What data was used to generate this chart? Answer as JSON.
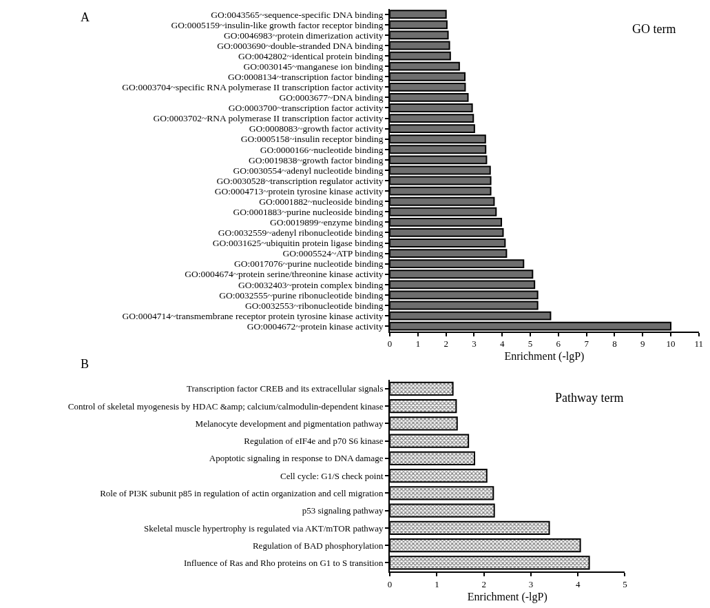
{
  "chart_data": [
    {
      "type": "bar",
      "orientation": "horizontal",
      "title": "A",
      "xlabel": "Enrichment (-lgP)",
      "annotations": [
        "GO term"
      ],
      "color": "#6e6e6e",
      "categories": [
        "GO:0043565~sequence-specific DNA binding",
        "GO:0005159~insulin-like growth factor receptor binding",
        "GO:0046983~protein dimerization activity",
        "GO:0003690~double-stranded DNA binding",
        "GO:0042802~identical protein binding",
        "GO:0030145~manganese ion binding",
        "GO:0008134~transcription factor binding",
        "GO:0003704~specific RNA polymerase II transcription factor activity",
        "GO:0003677~DNA binding",
        "GO:0003700~transcription factor activity",
        "GO:0003702~RNA polymerase II transcription factor activity",
        "GO:0008083~growth factor activity",
        "GO:0005158~insulin receptor binding",
        "GO:0000166~nucleotide binding",
        "GO:0019838~growth factor binding",
        "GO:0030554~adenyl nucleotide binding",
        "GO:0030528~transcription regulator activity",
        "GO:0004713~protein tyrosine kinase activity",
        "GO:0001882~nucleoside binding",
        "GO:0001883~purine nucleoside binding",
        "GO:0019899~enzyme binding",
        "GO:0032559~adenyl ribonucleotide binding",
        "GO:0031625~ubiquitin protein ligase binding",
        "GO:0005524~ATP binding",
        "GO:0017076~purine nucleotide binding",
        "GO:0004674~protein serine/threonine kinase activity",
        "GO:0032403~protein complex binding",
        "GO:0032555~purine ribonucleotide binding",
        "GO:0032553~ribonucleotide binding",
        "GO:0004714~transmembrane receptor protein tyrosine kinase activity",
        "GO:0004672~protein kinase activity"
      ],
      "values": [
        2.0,
        2.03,
        2.07,
        2.12,
        2.15,
        2.47,
        2.67,
        2.68,
        2.78,
        2.93,
        2.97,
        3.01,
        3.4,
        3.41,
        3.44,
        3.57,
        3.59,
        3.59,
        3.71,
        3.78,
        3.97,
        4.03,
        4.1,
        4.15,
        4.76,
        5.08,
        5.15,
        5.26,
        5.26,
        5.72,
        10.0
      ],
      "xlim": [
        0,
        11
      ],
      "xticks": [
        0,
        1,
        2,
        3,
        4,
        5,
        6,
        7,
        8,
        9,
        10,
        11
      ]
    },
    {
      "type": "bar",
      "orientation": "horizontal",
      "title": "B",
      "xlabel": "Enrichment (-lgP)",
      "annotations": [
        "Pathway term"
      ],
      "color": "#000000",
      "categories": [
        "Transcription factor CREB and its extracellular signals",
        "Control of skeletal myogenesis by HDAC &amp; calcium/calmodulin-dependent kinase",
        "Melanocyte development and pigmentation pathway",
        "Regulation of eIF4e and p70 S6 kinase",
        "Apoptotic signaling in response to DNA damage",
        "Cell cycle: G1/S check point",
        "Role of PI3K subunit p85 in regulation of actin organization and cell migration",
        "p53 signaling pathway",
        "Skeletal muscle hypertrophy is regulated via AKT/mTOR pathway",
        "Regulation of BAD phosphorylation",
        "Influence of Ras and Rho proteins on G1 to S transition"
      ],
      "values": [
        1.34,
        1.41,
        1.43,
        1.67,
        1.8,
        2.06,
        2.2,
        2.22,
        3.39,
        4.05,
        4.24
      ],
      "xlim": [
        0,
        5
      ],
      "xticks": [
        0,
        1,
        2,
        3,
        4,
        5
      ]
    }
  ]
}
